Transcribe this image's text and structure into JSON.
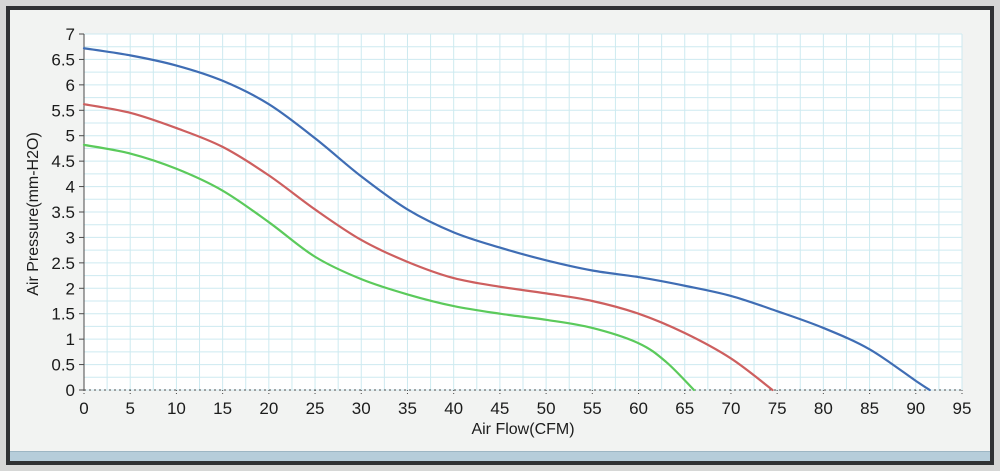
{
  "chart_data": {
    "type": "line",
    "title": "",
    "xlabel": "Air Flow(CFM)",
    "ylabel": "Air Pressure(mm-H2O)",
    "xlim": [
      0,
      95
    ],
    "ylim": [
      0,
      7
    ],
    "x_ticks": [
      0,
      5,
      10,
      15,
      20,
      25,
      30,
      35,
      40,
      45,
      50,
      55,
      60,
      65,
      70,
      75,
      80,
      85,
      90,
      95
    ],
    "y_ticks": [
      0,
      0.5,
      1,
      1.5,
      2,
      2.5,
      3,
      3.5,
      4,
      4.5,
      5,
      5.5,
      6,
      6.5,
      7
    ],
    "grid": true,
    "legend": "none",
    "grid_color": "#cdeaf0",
    "axis_color": "#4a4a4a",
    "text_color": "#1c1c1c",
    "plot_bg_color": "#ffffff",
    "series": [
      {
        "name": "curve-blue",
        "color": "#3f6db4",
        "points": [
          [
            0,
            6.72
          ],
          [
            5,
            6.58
          ],
          [
            10,
            6.38
          ],
          [
            15,
            6.08
          ],
          [
            20,
            5.62
          ],
          [
            25,
            4.95
          ],
          [
            30,
            4.2
          ],
          [
            35,
            3.55
          ],
          [
            40,
            3.1
          ],
          [
            45,
            2.8
          ],
          [
            50,
            2.55
          ],
          [
            55,
            2.35
          ],
          [
            60,
            2.22
          ],
          [
            65,
            2.05
          ],
          [
            70,
            1.85
          ],
          [
            75,
            1.55
          ],
          [
            80,
            1.22
          ],
          [
            85,
            0.8
          ],
          [
            90,
            0.18
          ],
          [
            91.5,
            0
          ]
        ]
      },
      {
        "name": "curve-red",
        "color": "#cd5f5f",
        "points": [
          [
            0,
            5.62
          ],
          [
            5,
            5.45
          ],
          [
            10,
            5.15
          ],
          [
            15,
            4.78
          ],
          [
            20,
            4.22
          ],
          [
            25,
            3.55
          ],
          [
            30,
            2.95
          ],
          [
            35,
            2.52
          ],
          [
            40,
            2.2
          ],
          [
            45,
            2.03
          ],
          [
            50,
            1.9
          ],
          [
            55,
            1.75
          ],
          [
            60,
            1.5
          ],
          [
            65,
            1.12
          ],
          [
            70,
            0.62
          ],
          [
            74.5,
            0
          ]
        ]
      },
      {
        "name": "curve-green",
        "color": "#5bca5b",
        "points": [
          [
            0,
            4.82
          ],
          [
            5,
            4.65
          ],
          [
            10,
            4.35
          ],
          [
            15,
            3.92
          ],
          [
            20,
            3.3
          ],
          [
            25,
            2.62
          ],
          [
            30,
            2.18
          ],
          [
            35,
            1.88
          ],
          [
            40,
            1.65
          ],
          [
            45,
            1.5
          ],
          [
            50,
            1.38
          ],
          [
            55,
            1.22
          ],
          [
            60,
            0.92
          ],
          [
            63,
            0.55
          ],
          [
            66,
            0
          ]
        ]
      }
    ]
  },
  "frame": {
    "bottom_bar_color": "#b6cdda"
  }
}
